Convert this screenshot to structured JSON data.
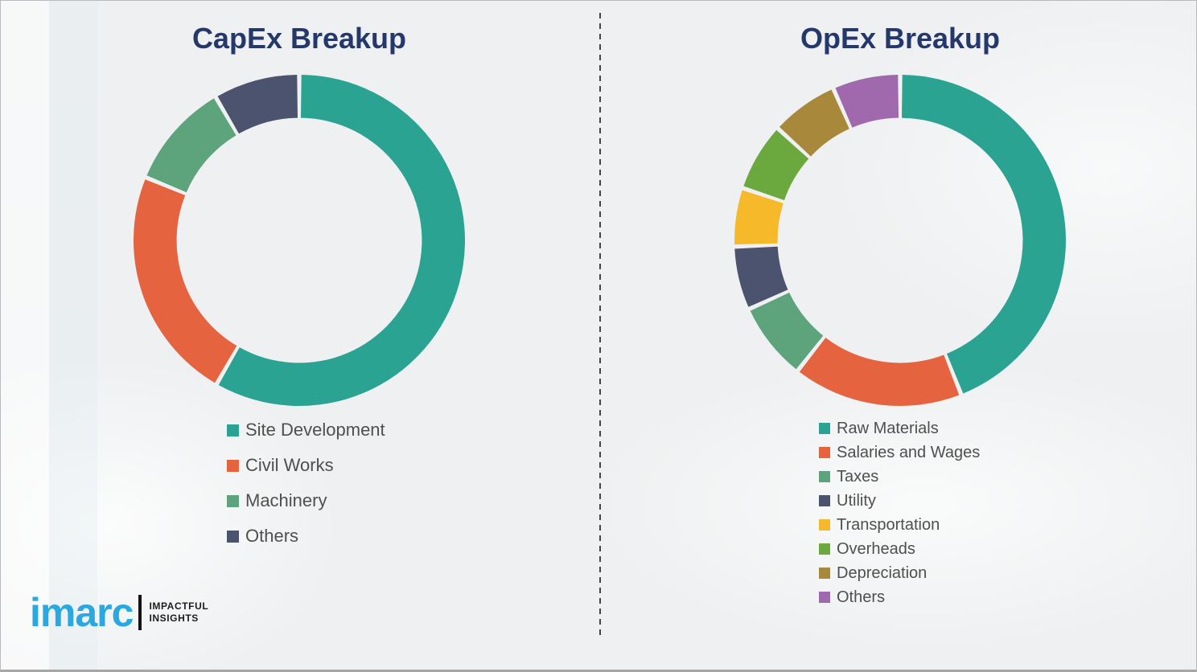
{
  "chart_data": [
    {
      "type": "pie",
      "subtype": "donut",
      "title": "CapEx Breakup",
      "labels": [
        "Site Development",
        "Civil Works",
        "Machinery",
        "Others"
      ],
      "values": [
        58.3,
        22.9,
        10.4,
        8.4
      ],
      "colors": [
        "#2aa392",
        "#e5633e",
        "#5da37c",
        "#4b536e"
      ],
      "start_angle_deg": 0,
      "direction": "clockwise",
      "inner_radius_ratio": 0.74,
      "legend_position": "below-left",
      "data_labels": "none"
    },
    {
      "type": "pie",
      "subtype": "donut",
      "title": "OpEx Breakup",
      "labels": [
        "Raw Materials",
        "Salaries and Wages",
        "Taxes",
        "Utility",
        "Transportation",
        "Overheads",
        "Depreciation",
        "Others"
      ],
      "values": [
        44.0,
        16.6,
        7.6,
        6.2,
        5.7,
        6.7,
        6.6,
        6.6
      ],
      "colors": [
        "#2aa392",
        "#e5633e",
        "#5da37c",
        "#4b536e",
        "#f5b929",
        "#6ba83d",
        "#a8893c",
        "#a069ad"
      ],
      "start_angle_deg": 0,
      "direction": "clockwise",
      "inner_radius_ratio": 0.74,
      "legend_position": "below-left",
      "data_labels": "none"
    }
  ],
  "titles": {
    "capex": "CapEx Breakup",
    "opex": "OpEx Breakup",
    "color": "#24386b"
  },
  "logo": {
    "wordmark": "imarc",
    "wordmark_color": "#29a9e0",
    "tagline_line1": "IMPACTFUL",
    "tagline_line2": "INSIGHTS"
  },
  "divider": {
    "style": "vertical-dashed",
    "color": "#454545"
  },
  "background_color": "#eef0f1"
}
